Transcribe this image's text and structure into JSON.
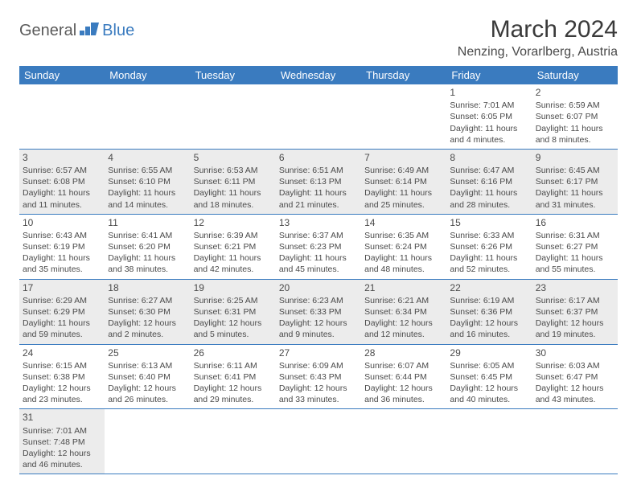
{
  "logo": {
    "text1": "General",
    "text2": "Blue",
    "icon_color": "#3a7bbf"
  },
  "title": "March 2024",
  "location": "Nenzing, Vorarlberg, Austria",
  "colors": {
    "header_bg": "#3a7bbf",
    "header_fg": "#ffffff",
    "row_shade": "#ececec",
    "row_plain": "#ffffff",
    "text": "#4a4a4a",
    "rule": "#3a7bbf"
  },
  "day_headers": [
    "Sunday",
    "Monday",
    "Tuesday",
    "Wednesday",
    "Thursday",
    "Friday",
    "Saturday"
  ],
  "weeks": [
    [
      null,
      null,
      null,
      null,
      null,
      {
        "n": "1",
        "sr": "Sunrise: 7:01 AM",
        "ss": "Sunset: 6:05 PM",
        "dl": "Daylight: 11 hours and 4 minutes."
      },
      {
        "n": "2",
        "sr": "Sunrise: 6:59 AM",
        "ss": "Sunset: 6:07 PM",
        "dl": "Daylight: 11 hours and 8 minutes."
      }
    ],
    [
      {
        "n": "3",
        "sr": "Sunrise: 6:57 AM",
        "ss": "Sunset: 6:08 PM",
        "dl": "Daylight: 11 hours and 11 minutes."
      },
      {
        "n": "4",
        "sr": "Sunrise: 6:55 AM",
        "ss": "Sunset: 6:10 PM",
        "dl": "Daylight: 11 hours and 14 minutes."
      },
      {
        "n": "5",
        "sr": "Sunrise: 6:53 AM",
        "ss": "Sunset: 6:11 PM",
        "dl": "Daylight: 11 hours and 18 minutes."
      },
      {
        "n": "6",
        "sr": "Sunrise: 6:51 AM",
        "ss": "Sunset: 6:13 PM",
        "dl": "Daylight: 11 hours and 21 minutes."
      },
      {
        "n": "7",
        "sr": "Sunrise: 6:49 AM",
        "ss": "Sunset: 6:14 PM",
        "dl": "Daylight: 11 hours and 25 minutes."
      },
      {
        "n": "8",
        "sr": "Sunrise: 6:47 AM",
        "ss": "Sunset: 6:16 PM",
        "dl": "Daylight: 11 hours and 28 minutes."
      },
      {
        "n": "9",
        "sr": "Sunrise: 6:45 AM",
        "ss": "Sunset: 6:17 PM",
        "dl": "Daylight: 11 hours and 31 minutes."
      }
    ],
    [
      {
        "n": "10",
        "sr": "Sunrise: 6:43 AM",
        "ss": "Sunset: 6:19 PM",
        "dl": "Daylight: 11 hours and 35 minutes."
      },
      {
        "n": "11",
        "sr": "Sunrise: 6:41 AM",
        "ss": "Sunset: 6:20 PM",
        "dl": "Daylight: 11 hours and 38 minutes."
      },
      {
        "n": "12",
        "sr": "Sunrise: 6:39 AM",
        "ss": "Sunset: 6:21 PM",
        "dl": "Daylight: 11 hours and 42 minutes."
      },
      {
        "n": "13",
        "sr": "Sunrise: 6:37 AM",
        "ss": "Sunset: 6:23 PM",
        "dl": "Daylight: 11 hours and 45 minutes."
      },
      {
        "n": "14",
        "sr": "Sunrise: 6:35 AM",
        "ss": "Sunset: 6:24 PM",
        "dl": "Daylight: 11 hours and 48 minutes."
      },
      {
        "n": "15",
        "sr": "Sunrise: 6:33 AM",
        "ss": "Sunset: 6:26 PM",
        "dl": "Daylight: 11 hours and 52 minutes."
      },
      {
        "n": "16",
        "sr": "Sunrise: 6:31 AM",
        "ss": "Sunset: 6:27 PM",
        "dl": "Daylight: 11 hours and 55 minutes."
      }
    ],
    [
      {
        "n": "17",
        "sr": "Sunrise: 6:29 AM",
        "ss": "Sunset: 6:29 PM",
        "dl": "Daylight: 11 hours and 59 minutes."
      },
      {
        "n": "18",
        "sr": "Sunrise: 6:27 AM",
        "ss": "Sunset: 6:30 PM",
        "dl": "Daylight: 12 hours and 2 minutes."
      },
      {
        "n": "19",
        "sr": "Sunrise: 6:25 AM",
        "ss": "Sunset: 6:31 PM",
        "dl": "Daylight: 12 hours and 5 minutes."
      },
      {
        "n": "20",
        "sr": "Sunrise: 6:23 AM",
        "ss": "Sunset: 6:33 PM",
        "dl": "Daylight: 12 hours and 9 minutes."
      },
      {
        "n": "21",
        "sr": "Sunrise: 6:21 AM",
        "ss": "Sunset: 6:34 PM",
        "dl": "Daylight: 12 hours and 12 minutes."
      },
      {
        "n": "22",
        "sr": "Sunrise: 6:19 AM",
        "ss": "Sunset: 6:36 PM",
        "dl": "Daylight: 12 hours and 16 minutes."
      },
      {
        "n": "23",
        "sr": "Sunrise: 6:17 AM",
        "ss": "Sunset: 6:37 PM",
        "dl": "Daylight: 12 hours and 19 minutes."
      }
    ],
    [
      {
        "n": "24",
        "sr": "Sunrise: 6:15 AM",
        "ss": "Sunset: 6:38 PM",
        "dl": "Daylight: 12 hours and 23 minutes."
      },
      {
        "n": "25",
        "sr": "Sunrise: 6:13 AM",
        "ss": "Sunset: 6:40 PM",
        "dl": "Daylight: 12 hours and 26 minutes."
      },
      {
        "n": "26",
        "sr": "Sunrise: 6:11 AM",
        "ss": "Sunset: 6:41 PM",
        "dl": "Daylight: 12 hours and 29 minutes."
      },
      {
        "n": "27",
        "sr": "Sunrise: 6:09 AM",
        "ss": "Sunset: 6:43 PM",
        "dl": "Daylight: 12 hours and 33 minutes."
      },
      {
        "n": "28",
        "sr": "Sunrise: 6:07 AM",
        "ss": "Sunset: 6:44 PM",
        "dl": "Daylight: 12 hours and 36 minutes."
      },
      {
        "n": "29",
        "sr": "Sunrise: 6:05 AM",
        "ss": "Sunset: 6:45 PM",
        "dl": "Daylight: 12 hours and 40 minutes."
      },
      {
        "n": "30",
        "sr": "Sunrise: 6:03 AM",
        "ss": "Sunset: 6:47 PM",
        "dl": "Daylight: 12 hours and 43 minutes."
      }
    ],
    [
      {
        "n": "31",
        "sr": "Sunrise: 7:01 AM",
        "ss": "Sunset: 7:48 PM",
        "dl": "Daylight: 12 hours and 46 minutes."
      },
      null,
      null,
      null,
      null,
      null,
      null
    ]
  ]
}
